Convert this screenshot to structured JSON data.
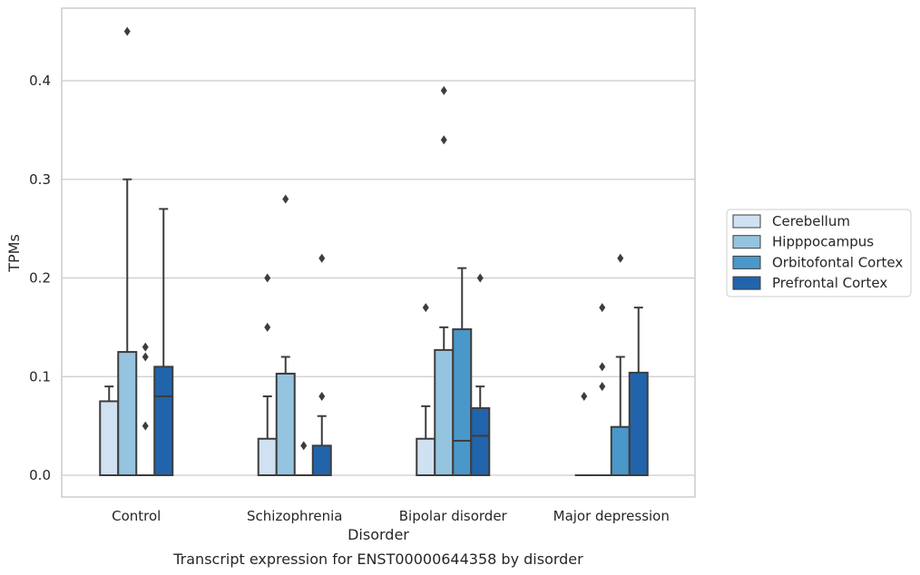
{
  "chart_data": {
    "type": "box",
    "caption": "Transcript expression for ENST00000644358 by disorder",
    "xlabel": "Disorder",
    "ylabel": "TPMs",
    "ylim": [
      -0.022,
      0.475
    ],
    "yticks": [
      "0.0",
      "0.1",
      "0.2",
      "0.3",
      "0.4"
    ],
    "ytick_values": [
      0.0,
      0.1,
      0.2,
      0.3,
      0.4
    ],
    "grid": "horizontal",
    "legend_position": "right",
    "categories": [
      "Control",
      "Schizophrenia",
      "Bipolar disorder",
      "Major depression"
    ],
    "series": [
      {
        "name": "Cerebellum",
        "color": "#d0e1f2",
        "boxes": [
          {
            "q1": 0.0,
            "median": 0.0,
            "q3": 0.075,
            "whisker_low": 0.0,
            "whisker_high": 0.09,
            "outliers": []
          },
          {
            "q1": 0.0,
            "median": 0.0,
            "q3": 0.037,
            "whisker_low": 0.0,
            "whisker_high": 0.08,
            "outliers": [
              0.15,
              0.2
            ]
          },
          {
            "q1": 0.0,
            "median": 0.0,
            "q3": 0.037,
            "whisker_low": 0.0,
            "whisker_high": 0.07,
            "outliers": [
              0.17
            ]
          },
          {
            "q1": 0.0,
            "median": 0.0,
            "q3": 0.0,
            "whisker_low": 0.0,
            "whisker_high": 0.0,
            "outliers": [
              0.08
            ]
          }
        ]
      },
      {
        "name": "Hipppocampus",
        "color": "#94c4df",
        "boxes": [
          {
            "q1": 0.0,
            "median": 0.0,
            "q3": 0.125,
            "whisker_low": 0.0,
            "whisker_high": 0.3,
            "outliers": [
              0.45
            ]
          },
          {
            "q1": 0.0,
            "median": 0.0,
            "q3": 0.103,
            "whisker_low": 0.0,
            "whisker_high": 0.12,
            "outliers": [
              0.28
            ]
          },
          {
            "q1": 0.0,
            "median": 0.0,
            "q3": 0.127,
            "whisker_low": 0.0,
            "whisker_high": 0.15,
            "outliers": [
              0.34,
              0.39
            ]
          },
          {
            "q1": 0.0,
            "median": 0.0,
            "q3": 0.0,
            "whisker_low": 0.0,
            "whisker_high": 0.0,
            "outliers": [
              0.09,
              0.11,
              0.17
            ]
          }
        ]
      },
      {
        "name": "Orbitofontal Cortex",
        "color": "#4a98c9",
        "boxes": [
          {
            "q1": 0.0,
            "median": 0.0,
            "q3": 0.0,
            "whisker_low": 0.0,
            "whisker_high": 0.0,
            "outliers": [
              0.05,
              0.12,
              0.13
            ]
          },
          {
            "q1": 0.0,
            "median": 0.0,
            "q3": 0.0,
            "whisker_low": 0.0,
            "whisker_high": 0.0,
            "outliers": [
              0.03
            ]
          },
          {
            "q1": 0.0,
            "median": 0.035,
            "q3": 0.148,
            "whisker_low": 0.0,
            "whisker_high": 0.21,
            "outliers": []
          },
          {
            "q1": 0.0,
            "median": 0.0,
            "q3": 0.049,
            "whisker_low": 0.0,
            "whisker_high": 0.12,
            "outliers": [
              0.22
            ]
          }
        ]
      },
      {
        "name": "Prefrontal Cortex",
        "color": "#2164ab",
        "boxes": [
          {
            "q1": 0.0,
            "median": 0.08,
            "q3": 0.11,
            "whisker_low": 0.0,
            "whisker_high": 0.27,
            "outliers": []
          },
          {
            "q1": 0.0,
            "median": 0.0,
            "q3": 0.03,
            "whisker_low": 0.0,
            "whisker_high": 0.06,
            "outliers": [
              0.08,
              0.22
            ]
          },
          {
            "q1": 0.0,
            "median": 0.04,
            "q3": 0.068,
            "whisker_low": 0.0,
            "whisker_high": 0.09,
            "outliers": [
              0.2
            ]
          },
          {
            "q1": 0.0,
            "median": 0.0,
            "q3": 0.104,
            "whisker_low": 0.0,
            "whisker_high": 0.17,
            "outliers": []
          }
        ]
      }
    ]
  }
}
